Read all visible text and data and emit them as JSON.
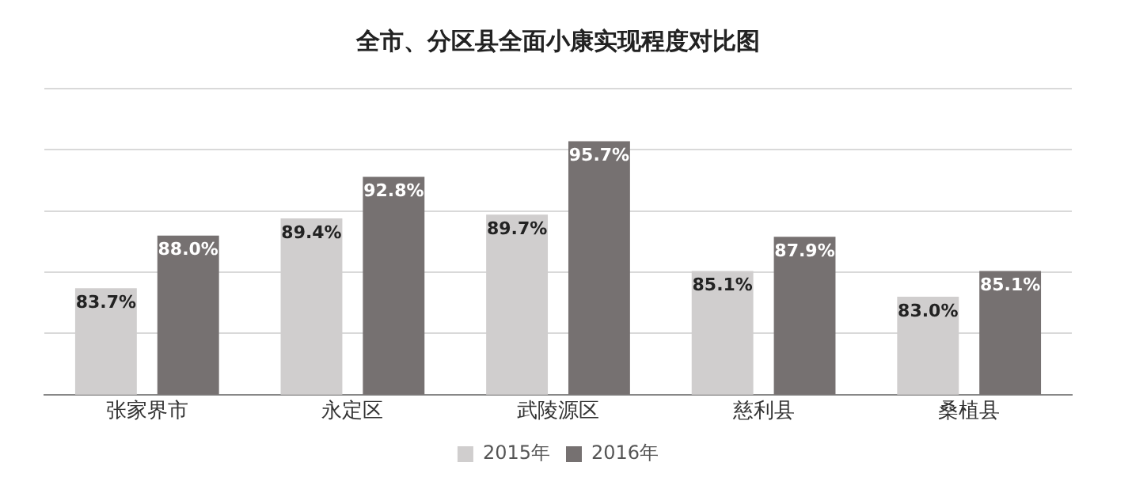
{
  "chart_data": {
    "type": "bar",
    "title": "全市、分区县全面小康实现程度对比图",
    "categories": [
      "张家界市",
      "永定区",
      "武陵源区",
      "慈利县",
      "桑植县"
    ],
    "series": [
      {
        "name": "2015年",
        "color": "#d0cece",
        "values": [
          83.7,
          89.4,
          89.7,
          85.1,
          83.0
        ],
        "value_labels": [
          "83.7%",
          "89.4%",
          "89.7%",
          "85.1%",
          "83.0%"
        ]
      },
      {
        "name": "2016年",
        "color": "#767171",
        "values": [
          88.0,
          92.8,
          95.7,
          87.9,
          85.1
        ],
        "value_labels": [
          "88.0%",
          "92.8%",
          "95.7%",
          "87.9%",
          "85.1%"
        ]
      }
    ],
    "ylim": [
      75,
      100
    ],
    "yticks": [
      {
        "value": 75,
        "label": null
      },
      {
        "value": 80,
        "label": null
      },
      {
        "value": 85,
        "label": null
      },
      {
        "value": 90,
        "label": null
      },
      {
        "value": 95,
        "label": null
      },
      {
        "value": 100,
        "label": null
      }
    ],
    "grid": "y",
    "legend": "bottom",
    "tick_labels": "x"
  }
}
